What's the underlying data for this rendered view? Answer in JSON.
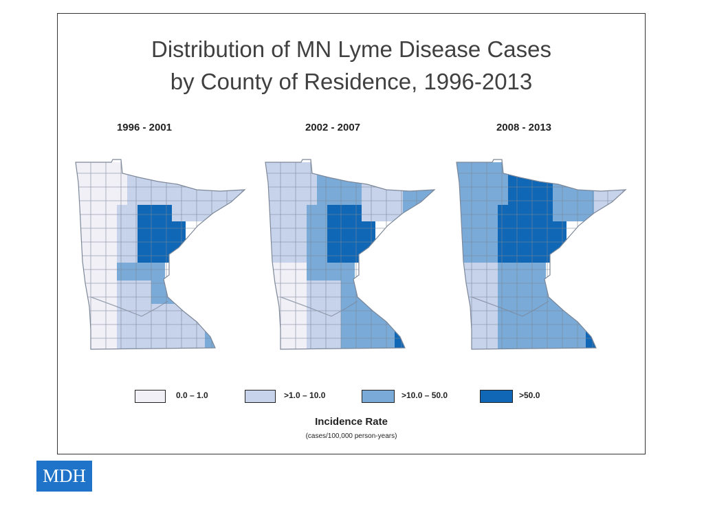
{
  "title": {
    "line1": "Distribution of MN Lyme Disease Cases",
    "line2": "by County of Residence, 1996-2013"
  },
  "colors": {
    "c0": "#f0f0f6",
    "c1": "#c7d3ea",
    "c2": "#7aaad8",
    "c3": "#0f67b5",
    "border": "#7c8798"
  },
  "panels": [
    {
      "label": "1996 - 2001",
      "regions": {
        "nw": 0,
        "ncentral": 1,
        "northeast": 1,
        "arrowhead": 1,
        "west": 0,
        "centralwest": 1,
        "centraleast": 3,
        "east": 3,
        "centermid": 2,
        "twin": 2,
        "southwest": 0,
        "south": 1,
        "southeast": 1,
        "corner": 2
      }
    },
    {
      "label": "2002 - 2007",
      "regions": {
        "nw": 1,
        "ncentral": 2,
        "northeast": 1,
        "arrowhead": 2,
        "west": 1,
        "centralwest": 2,
        "centraleast": 3,
        "east": 3,
        "centermid": 2,
        "twin": 2,
        "southwest": 0,
        "south": 1,
        "southeast": 2,
        "corner": 3
      }
    },
    {
      "label": "2008 - 2013",
      "regions": {
        "nw": 2,
        "ncentral": 3,
        "northeast": 2,
        "arrowhead": 1,
        "west": 2,
        "centralwest": 3,
        "centraleast": 3,
        "east": 3,
        "centermid": 2,
        "twin": 2,
        "southwest": 1,
        "south": 2,
        "southeast": 2,
        "corner": 3
      }
    }
  ],
  "legend": {
    "items": [
      {
        "label": "0.0 – 1.0",
        "level": 0
      },
      {
        "label": ">1.0 – 10.0",
        "level": 1
      },
      {
        "label": ">10.0 – 50.0",
        "level": 2
      },
      {
        "label": ">50.0",
        "level": 3
      }
    ],
    "title": "Incidence Rate",
    "subtitle": "(cases/100,000 person-years)"
  },
  "badge": "MDH"
}
